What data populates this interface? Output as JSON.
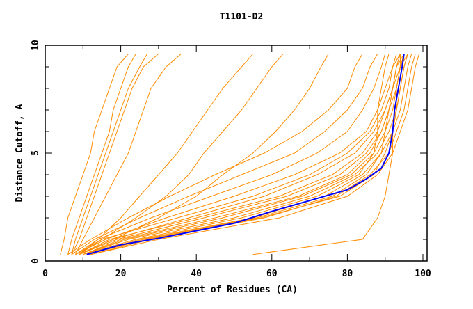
{
  "chart_data": {
    "type": "line",
    "title": "T1101-D2",
    "xlabel": "Percent of Residues (CA)",
    "ylabel": "Distance Cutoff, A",
    "xlim": [
      0,
      100
    ],
    "ylim": [
      0,
      10
    ],
    "x_ticks": [
      "0",
      "20",
      "40",
      "60",
      "80",
      "100"
    ],
    "y_ticks": [
      "0",
      "5",
      "10"
    ],
    "grid": false,
    "legend": "none",
    "colors": {
      "models": "#ff8c00",
      "highlight": "#0000ff"
    },
    "y_levels": [
      0.3,
      1,
      2,
      3,
      4,
      5,
      6,
      7,
      8,
      9,
      9.6
    ],
    "model_series_x": [
      [
        4,
        5,
        6,
        8,
        10,
        12,
        13,
        15,
        17,
        19,
        22
      ],
      [
        6,
        7,
        9,
        11,
        13,
        15,
        17,
        18,
        20,
        22,
        24
      ],
      [
        7,
        8,
        10,
        12,
        14,
        16,
        18,
        20,
        22,
        25,
        27
      ],
      [
        7,
        9,
        11,
        13,
        15,
        17,
        19,
        21,
        23,
        26,
        30
      ],
      [
        8,
        10,
        13,
        16,
        19,
        22,
        24,
        26,
        28,
        32,
        36
      ],
      [
        9,
        14,
        20,
        25,
        30,
        35,
        39,
        43,
        47,
        52,
        55
      ],
      [
        9,
        15,
        24,
        32,
        38,
        42,
        47,
        52,
        56,
        60,
        63
      ],
      [
        9,
        18,
        30,
        40,
        47,
        55,
        61,
        66,
        70,
        73,
        75
      ],
      [
        55,
        84,
        88,
        90,
        91,
        92,
        92,
        93,
        93,
        94,
        94
      ],
      [
        8,
        15,
        35,
        55,
        70,
        80,
        86,
        89,
        91,
        92,
        93
      ],
      [
        9,
        17,
        40,
        62,
        76,
        84,
        88,
        90,
        92,
        93,
        94
      ],
      [
        10,
        20,
        45,
        67,
        80,
        86,
        89,
        91,
        92,
        93,
        95
      ],
      [
        10,
        22,
        50,
        70,
        82,
        88,
        91,
        93,
        94,
        95,
        96
      ],
      [
        11,
        25,
        55,
        74,
        84,
        89,
        92,
        94,
        95,
        96,
        97
      ],
      [
        12,
        28,
        58,
        77,
        86,
        91,
        93,
        95,
        96,
        97,
        98
      ],
      [
        12,
        30,
        62,
        80,
        88,
        92,
        94,
        96,
        97,
        98,
        99
      ],
      [
        9,
        18,
        38,
        58,
        72,
        82,
        87,
        90,
        92,
        94,
        96
      ],
      [
        8,
        16,
        32,
        50,
        66,
        78,
        85,
        88,
        90,
        92,
        94
      ],
      [
        8,
        14,
        28,
        44,
        60,
        72,
        80,
        84,
        87,
        89,
        90
      ],
      [
        7,
        13,
        25,
        38,
        52,
        66,
        74,
        80,
        84,
        86,
        88
      ],
      [
        6,
        12,
        22,
        33,
        45,
        58,
        68,
        75,
        80,
        82,
        84
      ],
      [
        10,
        24,
        52,
        72,
        83,
        87,
        88,
        88,
        89,
        90,
        91
      ],
      [
        11,
        26,
        56,
        76,
        85,
        89,
        90,
        91,
        92,
        93,
        94
      ],
      [
        10,
        21,
        47,
        68,
        81,
        87,
        90,
        92,
        93,
        94,
        95
      ],
      [
        11,
        27,
        57,
        78,
        87,
        90,
        92,
        93,
        94,
        95,
        96
      ],
      [
        9,
        19,
        42,
        64,
        78,
        85,
        89,
        91,
        93,
        94,
        95
      ]
    ],
    "highlight_series": {
      "x": [
        11,
        20,
        30,
        40,
        50,
        60,
        70,
        80,
        85,
        89,
        91,
        92,
        92.5,
        93.5,
        94.5,
        95
      ],
      "y": [
        0.3,
        0.75,
        1.05,
        1.4,
        1.75,
        2.3,
        2.8,
        3.3,
        3.8,
        4.3,
        5,
        6,
        7,
        8,
        9,
        9.6
      ]
    }
  }
}
